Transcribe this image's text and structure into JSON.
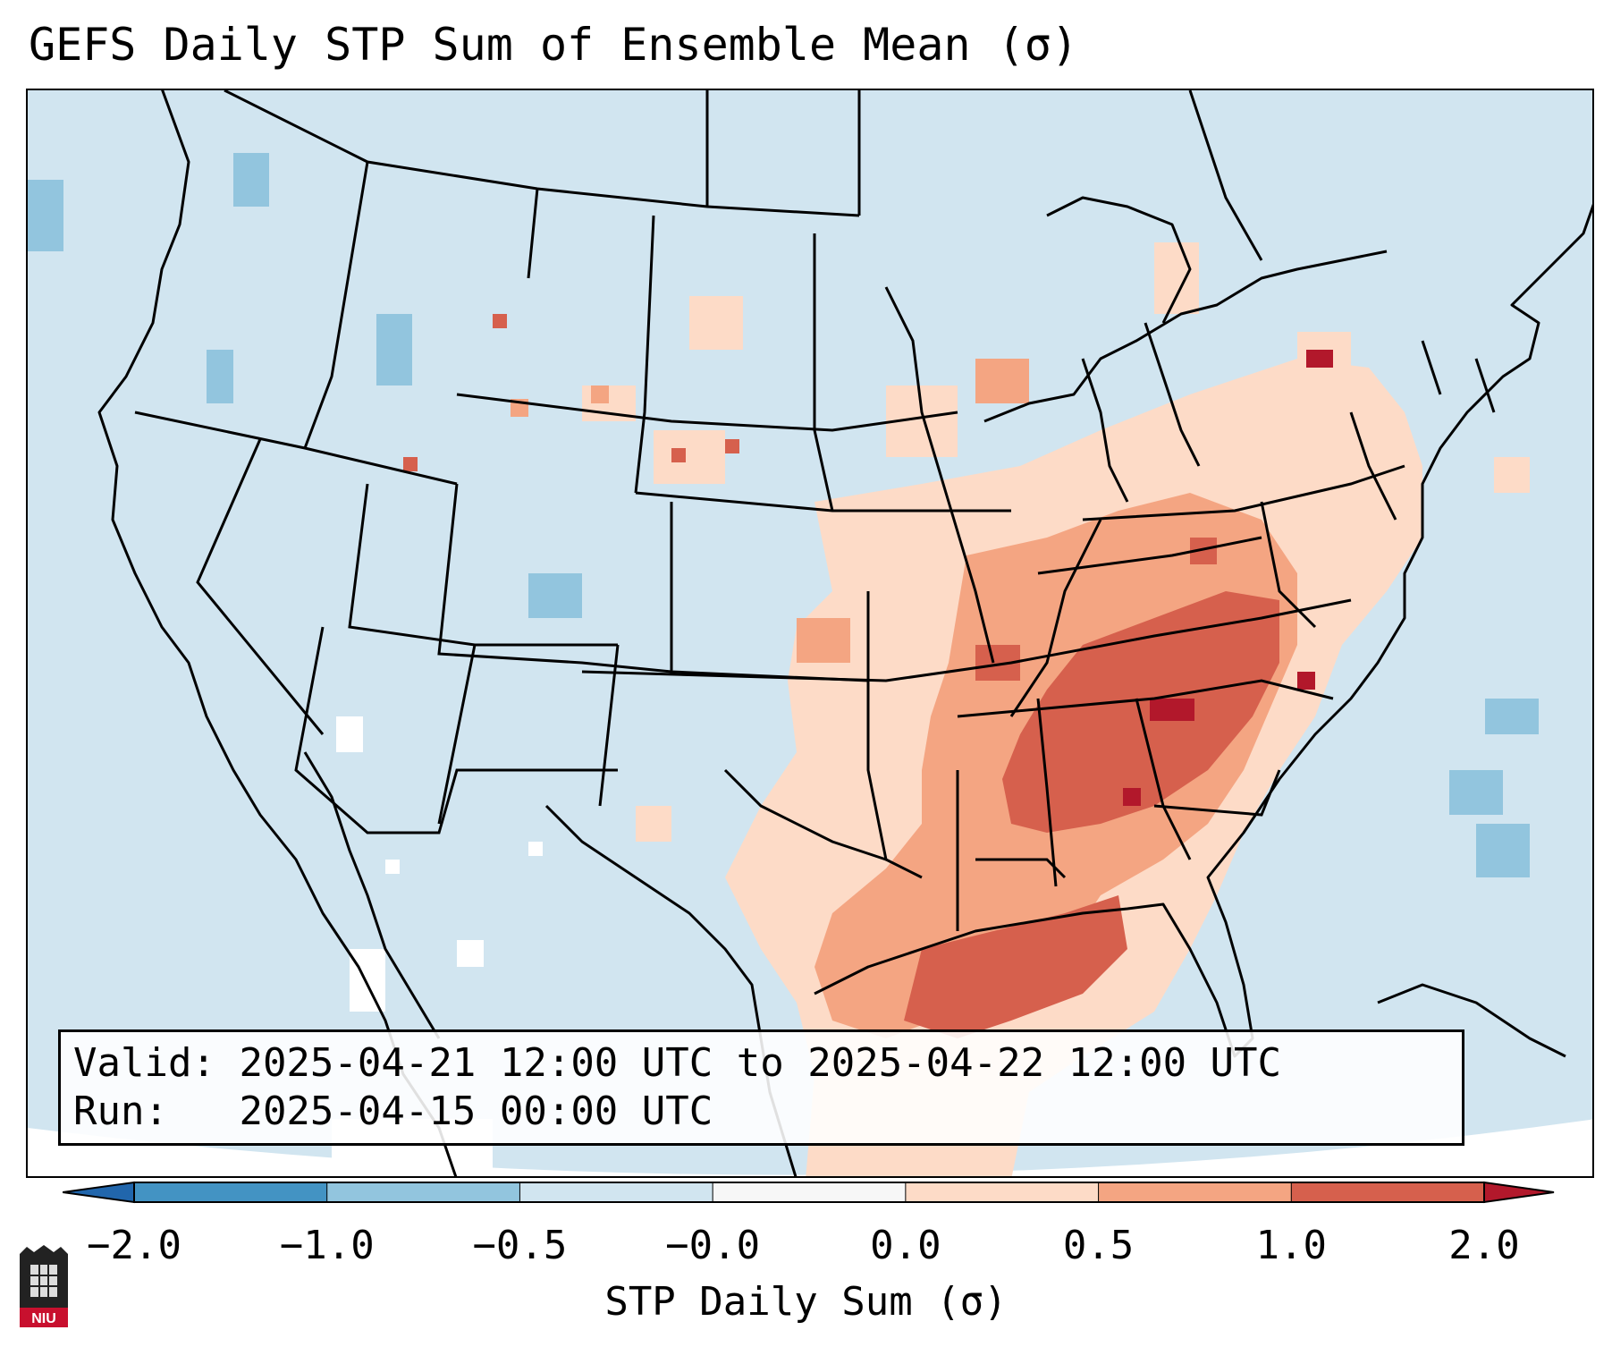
{
  "title": "GEFS Daily STP Sum of Ensemble Mean (σ)",
  "info": {
    "valid_label": "Valid:",
    "valid_value": "2025-04-21 12:00 UTC to 2025-04-22 12:00 UTC",
    "run_label": "Run:",
    "run_value": "2025-04-15 00:00 UTC"
  },
  "colorbar": {
    "label": "STP Daily Sum (σ)",
    "ticks": [
      "−2.0",
      "−1.0",
      "−0.5",
      "−0.0",
      "0.0",
      "0.5",
      "1.0",
      "2.0"
    ],
    "colors": [
      "#4393c3",
      "#92c5de",
      "#d1e5f0",
      "#f7f7f7",
      "#fddbc7",
      "#f4a582",
      "#d6604d"
    ],
    "extend_low_color": "#2166ac",
    "extend_high_color": "#b2182b"
  },
  "map": {
    "background_color": "#d1e5f0",
    "region": "Contiguous United States"
  },
  "logo": {
    "text": "NIU",
    "icon": "university-seal-icon"
  }
}
